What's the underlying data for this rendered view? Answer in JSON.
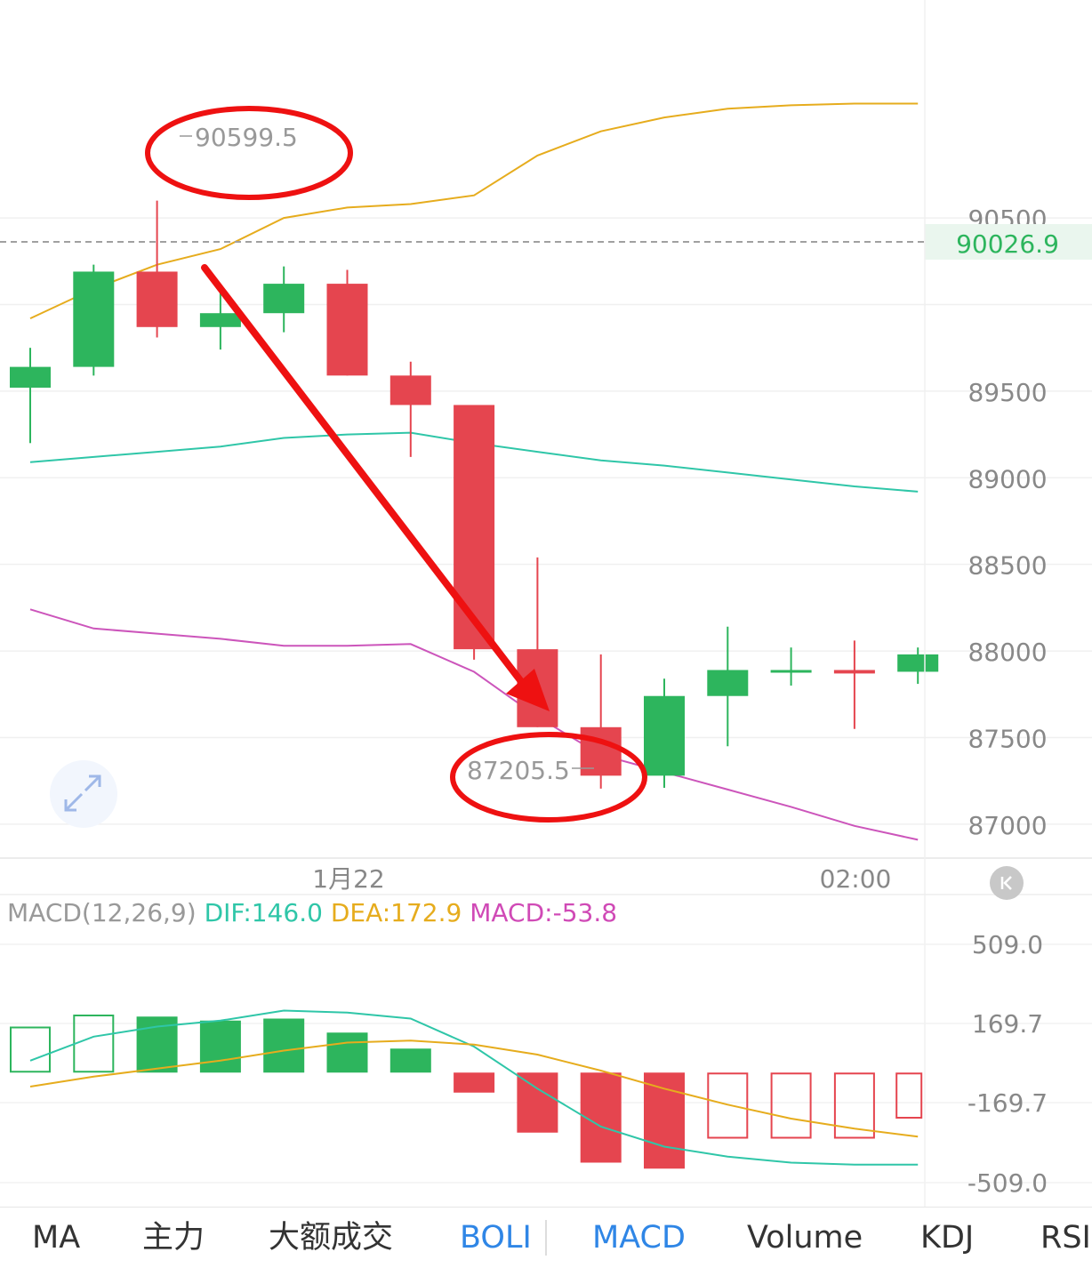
{
  "colors": {
    "up": "#2db55d",
    "down": "#e5454f",
    "boll_upper": "#e6ac1d",
    "boll_middle": "#2fc6a8",
    "boll_lower": "#cc55bb",
    "dif": "#2fc6a8",
    "dea": "#e6ac1d",
    "macd_label": "#d04ab6",
    "active_tab": "#2f86e6",
    "annotation": "#ee1111"
  },
  "price_axis": {
    "labels": [
      "90500",
      "90000",
      "89500",
      "89000",
      "88500",
      "88000",
      "87500",
      "87000"
    ]
  },
  "current_price": "90026.9",
  "time_axis": {
    "labels": [
      "1月22",
      "02:00"
    ]
  },
  "high_marker": "90599.5",
  "low_marker": "87205.5",
  "macd": {
    "title": "MACD(12,26,9)",
    "dif": "DIF:146.0",
    "dea": "DEA:172.9",
    "macd": "MACD:-53.8",
    "axis_labels": [
      "509.0",
      "169.7",
      "-169.7",
      "-509.0"
    ]
  },
  "tabs": [
    "MA",
    "主力",
    "大额成交",
    "BOLI",
    "MACD",
    "Volume",
    "KDJ",
    "RSI"
  ],
  "active_tabs": [
    "BOLI",
    "MACD"
  ],
  "icons": {
    "expand": "expand-icon",
    "scroll_left": "scroll-to-start-icon"
  },
  "chart_data": [
    {
      "type": "candlestick",
      "title": "",
      "x_labels": [
        "1月22",
        "02:00"
      ],
      "ylim": [
        86830,
        91450
      ],
      "candles": [
        {
          "o": 89520,
          "c": 89640,
          "h": 89750,
          "l": 89200
        },
        {
          "o": 89640,
          "c": 90190,
          "h": 90230,
          "l": 89590
        },
        {
          "o": 90190,
          "c": 89870,
          "h": 90599.5,
          "l": 89810
        },
        {
          "o": 89870,
          "c": 89950,
          "h": 90070,
          "l": 89740
        },
        {
          "o": 89950,
          "c": 90120,
          "h": 90220,
          "l": 89840
        },
        {
          "o": 90120,
          "c": 89590,
          "h": 90200,
          "l": 89590
        },
        {
          "o": 89590,
          "c": 89420,
          "h": 89670,
          "l": 89120
        },
        {
          "o": 89420,
          "c": 88010,
          "h": 89420,
          "l": 87950
        },
        {
          "o": 88010,
          "c": 87560,
          "h": 88540,
          "l": 87560
        },
        {
          "o": 87560,
          "c": 87280,
          "h": 87980,
          "l": 87205.5
        },
        {
          "o": 87280,
          "c": 87740,
          "h": 87840,
          "l": 87210
        },
        {
          "o": 87740,
          "c": 87890,
          "h": 88140,
          "l": 87450
        },
        {
          "o": 87890,
          "c": 87890,
          "h": 88020,
          "l": 87800
        },
        {
          "o": 87890,
          "c": 87870,
          "h": 88060,
          "l": 87550
        },
        {
          "o": 87880,
          "c": 87980,
          "h": 88020,
          "l": 87810
        }
      ],
      "series": [
        {
          "name": "upper",
          "values": [
            89920,
            90090,
            90230,
            90320,
            90500,
            90560,
            90580,
            90630,
            90860,
            91000,
            91080,
            91130,
            91150,
            91160,
            91160
          ]
        },
        {
          "name": "middle",
          "values": [
            89090,
            89120,
            89150,
            89180,
            89230,
            89250,
            89260,
            89200,
            89150,
            89100,
            89070,
            89030,
            88990,
            88950,
            88920
          ]
        },
        {
          "name": "lower",
          "values": [
            88240,
            88130,
            88100,
            88070,
            88030,
            88030,
            88040,
            87880,
            87620,
            87400,
            87300,
            87200,
            87100,
            86990,
            86910
          ]
        }
      ]
    },
    {
      "type": "bar",
      "title": "MACD(12,26,9)",
      "ylim": [
        -550,
        650
      ],
      "hist": [
        230,
        290,
        280,
        260,
        270,
        200,
        120,
        -100,
        -300,
        -450,
        -480,
        -330,
        -330,
        -330,
        -230
      ],
      "hist_hollow": [
        true,
        true,
        false,
        false,
        false,
        false,
        false,
        false,
        false,
        false,
        false,
        true,
        true,
        true,
        true
      ],
      "series": [
        {
          "name": "DIF",
          "values": [
            60,
            180,
            230,
            260,
            310,
            300,
            270,
            130,
            -80,
            -270,
            -370,
            -420,
            -450,
            -460,
            -460
          ]
        },
        {
          "name": "DEA",
          "values": [
            -70,
            -20,
            20,
            60,
            110,
            150,
            160,
            140,
            90,
            10,
            -80,
            -160,
            -230,
            -280,
            -320
          ]
        }
      ]
    }
  ]
}
